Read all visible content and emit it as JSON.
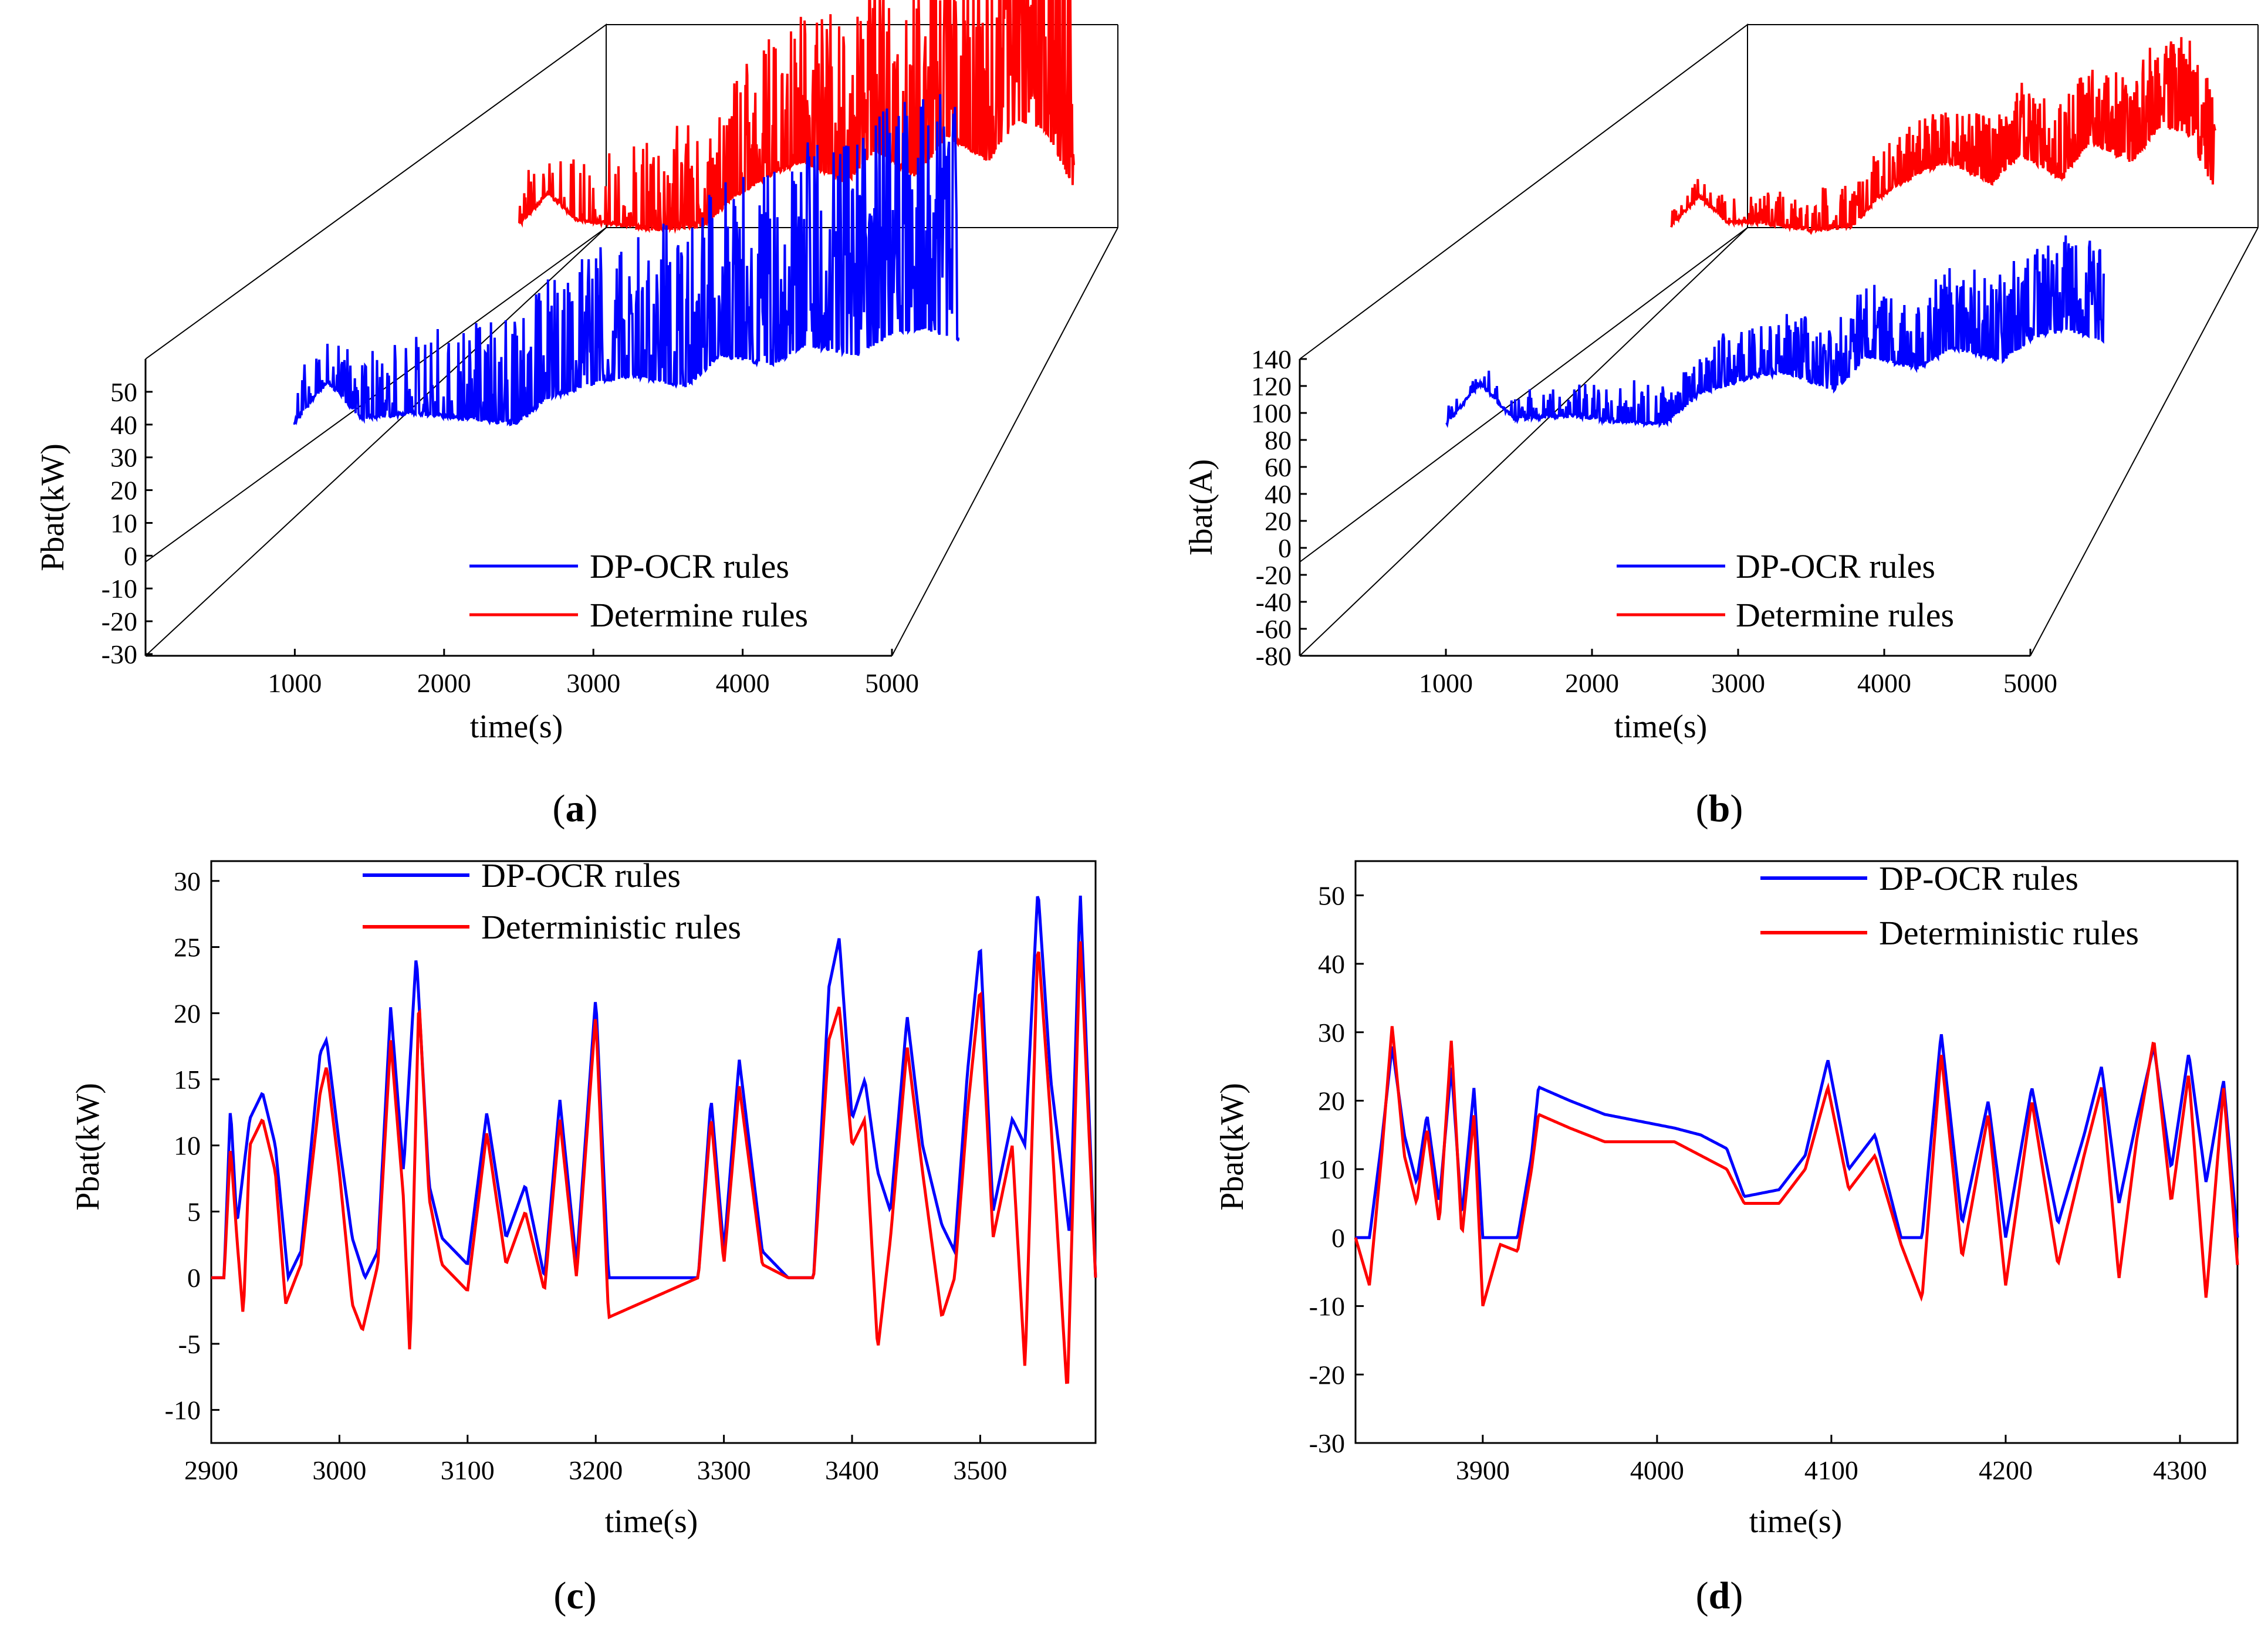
{
  "figure": {
    "panels": [
      {
        "label": "a",
        "chart_data": {
          "type": "line",
          "projection": "3d-waterfall",
          "xlabel": "time(s)",
          "ylabel": "Pbat(kW)",
          "xlim": [
            0,
            5000
          ],
          "x_ticks": [
            1000,
            2000,
            3000,
            4000,
            5000
          ],
          "ylim": [
            -30,
            55
          ],
          "y_ticks": [
            -30,
            -20,
            -10,
            0,
            10,
            20,
            30,
            40,
            50
          ],
          "series": [
            {
              "name": "DP-OCR rules",
              "color": "#0000ff",
              "x": [
                1000,
                1200,
                1400,
                1700,
                2000,
                2300,
                2500,
                2800,
                3000,
                3300,
                3500,
                3800,
                4000,
                4300,
                4500,
                4700,
                4900
              ],
              "values": [
                37,
                45,
                38,
                39,
                38,
                37,
                42,
                45,
                46,
                44,
                50,
                48,
                52,
                50,
                54,
                55,
                53
              ]
            },
            {
              "name": "Determine rules",
              "color": "#ff0000",
              "x": [
                1000,
                1200,
                1400,
                1700,
                2000,
                2300,
                2500,
                2800,
                3000,
                3300,
                3500,
                3800,
                4000,
                4300,
                4500,
                4700,
                4900
              ],
              "values": [
                38,
                44,
                39,
                38,
                37,
                38,
                43,
                48,
                50,
                46,
                52,
                47,
                55,
                50,
                58,
                56,
                45
              ]
            }
          ],
          "legend": "bottom-right"
        }
      },
      {
        "label": "b",
        "chart_data": {
          "type": "line",
          "projection": "3d-waterfall",
          "xlabel": "time(s)",
          "ylabel": "Ibat(A)",
          "xlim": [
            0,
            5000
          ],
          "x_ticks": [
            1000,
            2000,
            3000,
            4000,
            5000
          ],
          "ylim": [
            -80,
            140
          ],
          "y_ticks": [
            -80,
            -60,
            -40,
            -20,
            0,
            20,
            40,
            60,
            80,
            100,
            120,
            140
          ],
          "series": [
            {
              "name": "DP-OCR rules",
              "color": "#0000ff",
              "x": [
                1000,
                1200,
                1400,
                1700,
                2000,
                2300,
                2500,
                2800,
                3000,
                3300,
                3500,
                3800,
                4000,
                4300,
                4500,
                4700,
                4900
              ],
              "values": [
                96,
                115,
                98,
                100,
                97,
                96,
                110,
                118,
                120,
                112,
                128,
                122,
                132,
                126,
                138,
                140,
                135
              ]
            },
            {
              "name": "Determine rules",
              "color": "#ff0000",
              "x": [
                1000,
                1200,
                1400,
                1700,
                2000,
                2300,
                2500,
                2800,
                3000,
                3300,
                3500,
                3800,
                4000,
                4300,
                4500,
                4700,
                4900
              ],
              "values": [
                98,
                112,
                100,
                99,
                96,
                98,
                112,
                124,
                128,
                118,
                132,
                120,
                138,
                128,
                145,
                142,
                115
              ]
            }
          ],
          "legend": "bottom-right"
        }
      },
      {
        "label": "c",
        "chart_data": {
          "type": "line",
          "xlabel": "time(s)",
          "ylabel": "Pbat(kW)",
          "xlim": [
            2900,
            3590
          ],
          "x_ticks": [
            2900,
            3000,
            3100,
            3200,
            3300,
            3400,
            3500
          ],
          "ylim": [
            -12.5,
            31.5
          ],
          "y_ticks": [
            -10,
            -5,
            0,
            5,
            10,
            15,
            20,
            25,
            30
          ],
          "series": [
            {
              "name": "DP-OCR rules",
              "color": "#0000ff",
              "x": [
                2900,
                2910,
                2915,
                2920,
                2930,
                2940,
                2950,
                2960,
                2970,
                2985,
                2990,
                3000,
                3010,
                3020,
                3030,
                3040,
                3050,
                3060,
                3070,
                3080,
                3090,
                3100,
                3115,
                3130,
                3145,
                3160,
                3172,
                3185,
                3200,
                3210,
                3280,
                3290,
                3300,
                3312,
                3330,
                3350,
                3370,
                3382,
                3390,
                3400,
                3410,
                3420,
                3430,
                3443,
                3455,
                3470,
                3480,
                3490,
                3500,
                3510,
                3525,
                3535,
                3545,
                3555,
                3570,
                3578,
                3590
              ],
              "values": [
                0,
                0,
                13,
                4,
                12,
                14,
                10,
                0,
                2,
                17,
                18,
                10,
                3,
                0,
                2,
                20.5,
                8,
                24.5,
                7,
                3,
                2,
                1,
                12.5,
                3,
                7,
                0,
                13.5,
                1,
                21.3,
                0,
                0,
                13.6,
                2,
                16.5,
                2,
                0,
                0,
                22,
                25.7,
                12,
                15,
                8,
                5,
                19.8,
                10,
                4,
                2,
                15.5,
                25.3,
                5,
                12,
                10,
                29.5,
                15,
                3,
                29.3,
                0
              ]
            },
            {
              "name": "Deterministic rules",
              "color": "#ff0000",
              "x": [
                2900,
                2910,
                2915,
                2920,
                2925,
                2930,
                2940,
                2950,
                2958,
                2970,
                2985,
                2990,
                3000,
                3010,
                3018,
                3030,
                3040,
                3050,
                3055,
                3062,
                3070,
                3080,
                3090,
                3100,
                3115,
                3130,
                3145,
                3160,
                3172,
                3185,
                3200,
                3210,
                3280,
                3290,
                3300,
                3312,
                3330,
                3350,
                3370,
                3382,
                3390,
                3400,
                3410,
                3420,
                3430,
                3443,
                3455,
                3470,
                3480,
                3490,
                3500,
                3510,
                3525,
                3535,
                3545,
                3555,
                3568,
                3578,
                3590
              ],
              "values": [
                0,
                0,
                10,
                3,
                -3,
                10,
                12,
                8,
                -2,
                1,
                14,
                16,
                8,
                -2,
                -4,
                1,
                18,
                6,
                -6,
                21.3,
                6,
                1,
                0,
                -1,
                11,
                1,
                5,
                -1,
                12,
                0,
                20,
                -3,
                0,
                12.2,
                1,
                14.5,
                1,
                0,
                0,
                18,
                20.5,
                10,
                12,
                -5.5,
                3,
                17.5,
                8,
                -3,
                0,
                12.5,
                22,
                3,
                10,
                -7,
                25.5,
                12,
                -9,
                25.8,
                0
              ]
            }
          ],
          "legend": "top-center"
        }
      },
      {
        "label": "d",
        "chart_data": {
          "type": "line",
          "xlabel": "time(s)",
          "ylabel": "Pbat(kW)",
          "xlim": [
            3827,
            4333
          ],
          "x_ticks": [
            3900,
            4000,
            4100,
            4200,
            4300
          ],
          "ylim": [
            -30,
            55
          ],
          "y_ticks": [
            -30,
            -20,
            -10,
            0,
            10,
            20,
            30,
            40,
            50
          ],
          "series": [
            {
              "name": "DP-OCR rules",
              "color": "#0000ff",
              "x": [
                3827,
                3835,
                3842,
                3848,
                3855,
                3862,
                3868,
                3875,
                3882,
                3888,
                3895,
                3900,
                3910,
                3920,
                3928,
                3932,
                3950,
                3970,
                3990,
                4010,
                4025,
                4040,
                4050,
                4070,
                4085,
                4098,
                4110,
                4125,
                4140,
                4152,
                4163,
                4175,
                4190,
                4200,
                4215,
                4230,
                4245,
                4255,
                4265,
                4275,
                4285,
                4295,
                4305,
                4315,
                4325,
                4333
              ],
              "values": [
                0,
                0,
                14,
                28,
                15,
                8,
                18,
                5,
                25,
                3,
                22,
                0,
                0,
                0,
                12,
                22,
                20,
                18,
                17,
                16,
                15,
                13,
                6,
                7,
                12,
                26,
                10,
                15,
                0,
                0,
                30,
                2,
                20,
                0,
                22,
                2,
                15,
                25,
                5,
                17,
                28,
                10,
                27,
                8,
                23,
                0
              ]
            },
            {
              "name": "Deterministic rules",
              "color": "#ff0000",
              "x": [
                3827,
                3835,
                3842,
                3848,
                3855,
                3862,
                3868,
                3875,
                3882,
                3888,
                3895,
                3900,
                3910,
                3920,
                3928,
                3932,
                3950,
                3970,
                3990,
                4010,
                4025,
                4040,
                4050,
                4070,
                4085,
                4098,
                4110,
                4125,
                4140,
                4152,
                4163,
                4175,
                4190,
                4200,
                4215,
                4230,
                4245,
                4255,
                4265,
                4275,
                4285,
                4295,
                4305,
                4315,
                4325,
                4333
              ],
              "values": [
                0,
                -7,
                12,
                31,
                12,
                5,
                16,
                2,
                29,
                0,
                18,
                -10,
                -1,
                -2,
                10,
                18,
                16,
                14,
                14,
                14,
                12,
                10,
                5,
                5,
                10,
                22,
                7,
                12,
                -1,
                -9,
                27,
                -3,
                18,
                -7,
                20,
                -4,
                12,
                22,
                -6,
                14,
                29,
                5,
                24,
                -9,
                22,
                -4
              ]
            }
          ],
          "legend": "top-right"
        }
      }
    ]
  }
}
